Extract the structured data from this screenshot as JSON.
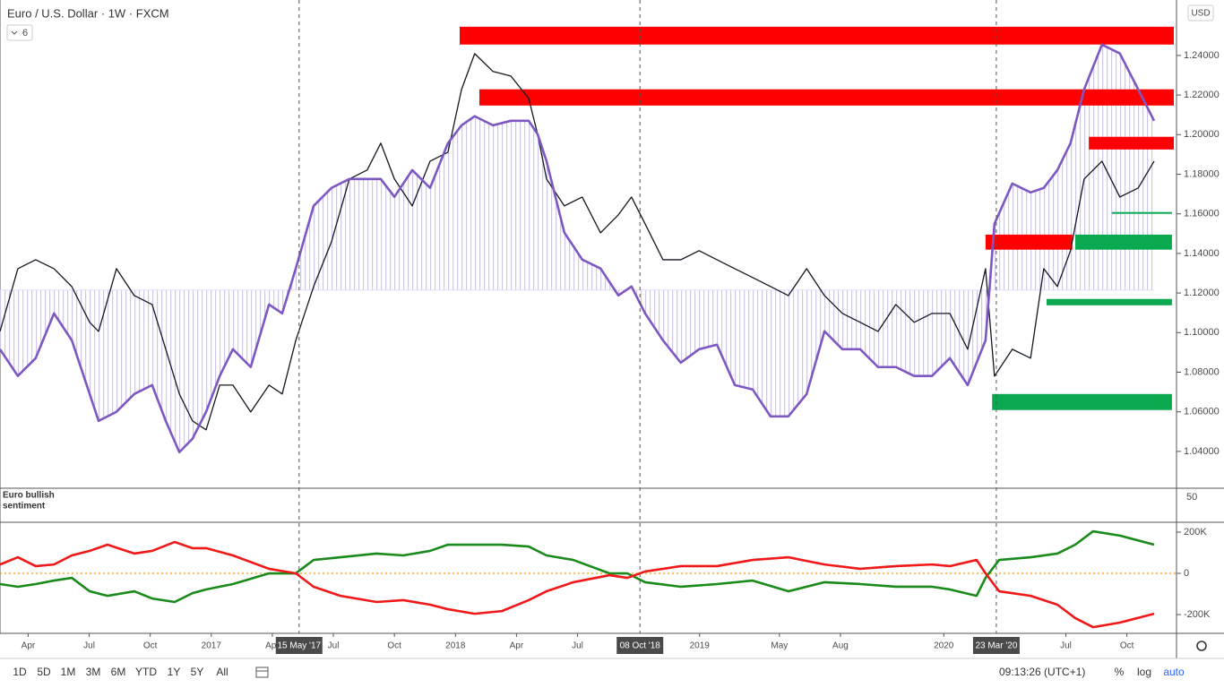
{
  "header": {
    "title": "Euro / U.S. Dollar · 1W · FXCM",
    "indicator_count": "6",
    "currency": "USD"
  },
  "chart_data": [
    {
      "type": "line",
      "title": "Euro / U.S. Dollar",
      "xlim": [
        7,
        257
      ],
      "ylim": [
        1.0214,
        1.268
      ],
      "yticks": [
        {
          "value": 1.04,
          "label": "1.04000"
        },
        {
          "value": 1.06,
          "label": "1.06000"
        },
        {
          "value": 1.08,
          "label": "1.08000"
        },
        {
          "value": 1.1,
          "label": "1.10000"
        },
        {
          "value": 1.12,
          "label": "1.12000"
        },
        {
          "value": 1.14,
          "label": "1.14000"
        },
        {
          "value": 1.16,
          "label": "1.16000"
        },
        {
          "value": 1.18,
          "label": "1.18000"
        },
        {
          "value": 1.2,
          "label": "1.20000"
        },
        {
          "value": 1.22,
          "label": "1.22000"
        },
        {
          "value": 1.24,
          "label": "1.24000"
        }
      ],
      "x": [
        7.0,
        10.8,
        14.6,
        18.5,
        22.3,
        26.1,
        28.0,
        31.8,
        35.6,
        39.4,
        42.3,
        45.2,
        48.0,
        50.9,
        53.8,
        56.6,
        60.4,
        64.3,
        67.1,
        70.0,
        73.8,
        77.6,
        81.4,
        85.2,
        88.1,
        91.0,
        94.8,
        98.6,
        102.4,
        105.3,
        108.1,
        112.0,
        115.8,
        119.6,
        121.5,
        123.4,
        127.2,
        131.0,
        134.9,
        138.7,
        141.5,
        144.4,
        148.2,
        152.0,
        155.9,
        159.7,
        163.5,
        167.3,
        171.1,
        174.9,
        178.8,
        182.6,
        186.4,
        190.2,
        194.0,
        197.8,
        201.7,
        205.5,
        209.3,
        213.1,
        216.9,
        218.8,
        222.6,
        226.5,
        229.3,
        232.2,
        235.0,
        237.9,
        241.7,
        245.5,
        249.4,
        252.8
      ],
      "baseline": 1.1215,
      "series": [
        {
          "color": "#131722",
          "values": [
            1.1006,
            1.1323,
            1.1368,
            1.1323,
            1.1232,
            1.1052,
            1.1006,
            1.1323,
            1.1187,
            1.1142,
            1.0916,
            1.069,
            1.0554,
            1.0509,
            1.0735,
            1.0735,
            1.0599,
            1.0735,
            1.069,
            1.0961,
            1.1233,
            1.1459,
            1.1776,
            1.1821,
            1.1957,
            1.1776,
            1.164,
            1.1866,
            1.1911,
            1.2228,
            1.2409,
            1.2319,
            1.2296,
            1.2183,
            1.2002,
            1.1776,
            1.164,
            1.1685,
            1.1504,
            1.1595,
            1.1685,
            1.1549,
            1.1368,
            1.1368,
            1.1414,
            1.1368,
            1.1323,
            1.1278,
            1.1233,
            1.1187,
            1.1323,
            1.1187,
            1.1097,
            1.1052,
            1.1006,
            1.1142,
            1.1052,
            1.1097,
            1.1097,
            1.0916,
            1.1323,
            1.078,
            1.0916,
            1.0871,
            1.1323,
            1.1233,
            1.1414,
            1.1776,
            1.1866,
            1.1685,
            1.173,
            1.1866
          ]
        },
        {
          "color": "#7e57c2",
          "values": [
            1.0916,
            1.0781,
            1.0871,
            1.1097,
            1.0961,
            1.069,
            1.0554,
            1.06,
            1.069,
            1.0735,
            1.0554,
            1.0396,
            1.0464,
            1.06,
            1.0781,
            1.0916,
            1.0826,
            1.1142,
            1.1097,
            1.1324,
            1.164,
            1.1731,
            1.1776,
            1.1776,
            1.1776,
            1.1686,
            1.1821,
            1.1731,
            1.1957,
            1.2047,
            1.2093,
            1.2047,
            1.207,
            1.207,
            1.2002,
            1.1866,
            1.1505,
            1.1369,
            1.1324,
            1.1188,
            1.1233,
            1.1097,
            1.0961,
            1.0848,
            1.0916,
            1.0939,
            1.0735,
            1.0713,
            1.0577,
            1.0577,
            1.069,
            1.1007,
            1.0916,
            1.0916,
            1.0826,
            1.0826,
            1.0781,
            1.0781,
            1.0871,
            1.0735,
            1.0961,
            1.155,
            1.1753,
            1.1708,
            1.1731,
            1.1821,
            1.1957,
            1.2229,
            1.2455,
            1.241,
            1.2229,
            1.207
          ]
        }
      ],
      "zones": [
        {
          "x": [
            104.9,
            257
          ],
          "y": [
            1.2455,
            1.2545
          ],
          "color": "#ff0000"
        },
        {
          "x": [
            109.1,
            257
          ],
          "y": [
            1.2147,
            1.2229
          ],
          "color": "#ff0000"
        },
        {
          "x": [
            238.9,
            257
          ],
          "y": [
            1.1925,
            1.1989
          ],
          "color": "#ff0000"
        },
        {
          "x": [
            216.9,
            235.4
          ],
          "y": [
            1.1419,
            1.1495
          ],
          "color": "#ff0000"
        },
        {
          "x": [
            236.0,
            256.6
          ],
          "y": [
            1.1419,
            1.1495
          ],
          "color": "#0aa84f"
        },
        {
          "x": [
            229.9,
            256.6
          ],
          "y": [
            1.1138,
            1.117
          ],
          "color": "#0aa84f"
        },
        {
          "x": [
            218.3,
            256.6
          ],
          "y": [
            1.0609,
            1.069
          ],
          "color": "#0aa84f"
        },
        {
          "x": [
            243.8,
            256.6
          ],
          "y": [
            1.16,
            1.1609
          ],
          "color": "#0aa84f"
        }
      ],
      "markers": [
        {
          "value": 70.7,
          "label": "15 May '17"
        },
        {
          "value": 143.3,
          "label": "08 Oct '18"
        },
        {
          "value": 219.2,
          "label": "23 Mar '20"
        }
      ]
    },
    {
      "type": "line",
      "title": [
        "Euro bullish",
        "sentiment"
      ],
      "scale_label": "50",
      "xlim": [
        7,
        257
      ],
      "ylim": [
        -291000,
        239000
      ],
      "yticks": [
        {
          "value": 200000,
          "label": "200K"
        },
        0,
        {
          "value": -200000,
          "label": "-200K"
        }
      ],
      "ref_line": 0,
      "ref_color": "#ff9800",
      "xticks": [
        {
          "value": 13,
          "label": "Apr"
        },
        {
          "value": 26,
          "label": "Jul"
        },
        {
          "value": 39,
          "label": "Oct"
        },
        {
          "value": 52,
          "label": "2017"
        },
        {
          "value": 65,
          "label": "Apr"
        },
        {
          "value": 78,
          "label": "Jul"
        },
        {
          "value": 91,
          "label": "Oct"
        },
        {
          "value": 104,
          "label": "2018"
        },
        {
          "value": 117,
          "label": "Apr"
        },
        {
          "value": 130,
          "label": "Jul"
        },
        {
          "value": 156,
          "label": "2019"
        },
        {
          "value": 173,
          "label": "May"
        },
        {
          "value": 186,
          "label": "Aug"
        },
        {
          "value": 208,
          "label": "2020"
        },
        {
          "value": 234,
          "label": "Jul"
        },
        {
          "value": 247,
          "label": "Oct"
        }
      ],
      "x": [
        7.0,
        10.8,
        14.6,
        18.5,
        22.3,
        26.1,
        29.9,
        35.6,
        39.4,
        44.2,
        48.0,
        50.9,
        56.6,
        64.3,
        70.0,
        73.8,
        79.5,
        87.2,
        92.9,
        98.6,
        102.4,
        108.1,
        113.9,
        119.6,
        123.4,
        129.1,
        136.8,
        140.6,
        144.4,
        152.0,
        159.7,
        167.3,
        174.9,
        182.6,
        190.2,
        197.8,
        205.5,
        209.3,
        215.0,
        216.9,
        219.8,
        226.5,
        232.2,
        236.0,
        239.8,
        245.5,
        252.8
      ],
      "series": [
        {
          "color": "#1a8a1a",
          "values": [
            -52000,
            -65000,
            -52000,
            -35000,
            -22000,
            -87000,
            -109000,
            -87000,
            -122000,
            -139000,
            -96000,
            -78000,
            -52000,
            0,
            0,
            65000,
            78000,
            96000,
            87000,
            109000,
            139000,
            139000,
            139000,
            130000,
            87000,
            65000,
            0,
            0,
            -43000,
            -65000,
            -52000,
            -35000,
            -87000,
            -43000,
            -52000,
            -65000,
            -65000,
            -78000,
            -109000,
            -22000,
            65000,
            78000,
            96000,
            139000,
            204000,
            183000,
            139000
          ]
        },
        {
          "color": "#f01818",
          "values": [
            43000,
            78000,
            35000,
            43000,
            87000,
            109000,
            139000,
            96000,
            109000,
            152000,
            122000,
            122000,
            87000,
            22000,
            0,
            -65000,
            -109000,
            -139000,
            -130000,
            -152000,
            -174000,
            -196000,
            -183000,
            -130000,
            -87000,
            -43000,
            -9000,
            -22000,
            9000,
            35000,
            35000,
            65000,
            78000,
            43000,
            22000,
            35000,
            43000,
            35000,
            65000,
            0,
            -87000,
            -109000,
            -152000,
            -217000,
            -261000,
            -239000,
            -196000
          ]
        }
      ]
    }
  ],
  "toolbar": {
    "ranges": [
      "1D",
      "5D",
      "1M",
      "3M",
      "6M",
      "YTD",
      "1Y",
      "5Y",
      "All"
    ],
    "clock": "09:13:26 (UTC+1)",
    "percent": "%",
    "log": "log",
    "auto": "auto"
  }
}
